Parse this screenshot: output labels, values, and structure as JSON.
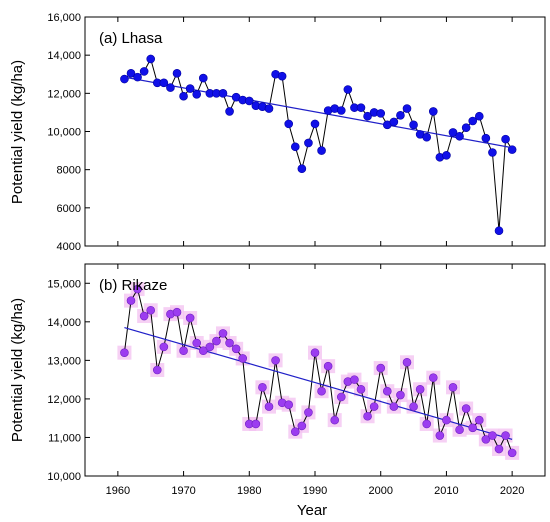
{
  "xlabel": "Year",
  "ylabel": "Potential yield (kg/ha)",
  "x_ticks": [
    "1960",
    "1970",
    "1980",
    "1990",
    "2000",
    "2010",
    "2020"
  ],
  "colors": {
    "lhasa_points": "#1010e8",
    "rikaze_points": "#9c3cf0",
    "rikaze_halo": "#f3c0f0",
    "trend": "#2020c8",
    "series_line": "#000000"
  },
  "chart_data": [
    {
      "type": "line",
      "panel_label": "(a) Lhasa",
      "xlabel": "Year",
      "ylabel": "Potential yield (kg/ha)",
      "xlim": [
        1955,
        2025
      ],
      "ylim": [
        4000,
        16000
      ],
      "y_tick_values": [
        4000,
        6000,
        8000,
        10000,
        12000,
        14000,
        16000
      ],
      "y_tick_labels": [
        "4000",
        "6000",
        "8000",
        "10,000",
        "12,000",
        "14,000",
        "16,000"
      ],
      "x": [
        1961,
        1962,
        1963,
        1964,
        1965,
        1966,
        1967,
        1968,
        1969,
        1970,
        1971,
        1972,
        1973,
        1974,
        1975,
        1976,
        1977,
        1978,
        1979,
        1980,
        1981,
        1982,
        1983,
        1984,
        1985,
        1986,
        1987,
        1988,
        1989,
        1990,
        1991,
        1992,
        1993,
        1994,
        1995,
        1996,
        1997,
        1998,
        1999,
        2000,
        2001,
        2002,
        2003,
        2004,
        2005,
        2006,
        2007,
        2008,
        2009,
        2010,
        2011,
        2012,
        2013,
        2014,
        2015,
        2016,
        2017,
        2018,
        2019,
        2020
      ],
      "values": [
        12750,
        13050,
        12850,
        13150,
        13800,
        12550,
        12550,
        12300,
        13050,
        11850,
        12250,
        11950,
        12800,
        12000,
        12000,
        12000,
        11050,
        11800,
        11650,
        11600,
        11350,
        11300,
        11200,
        13000,
        12900,
        10400,
        9200,
        8050,
        9400,
        10400,
        9000,
        11100,
        11200,
        11100,
        12200,
        11250,
        11250,
        10800,
        11000,
        10950,
        10350,
        10500,
        10850,
        11200,
        10350,
        9850,
        9700,
        11050,
        8650,
        8750,
        9950,
        9750,
        10200,
        10550,
        10800,
        9650,
        8900,
        4800,
        9600,
        9050
      ],
      "trend": {
        "x": [
          1961,
          2020
        ],
        "y": [
          12850,
          9150
        ]
      }
    },
    {
      "type": "line",
      "panel_label": "(b) Rikaze",
      "xlabel": "Year",
      "ylabel": "Potential yield (kg/ha)",
      "xlim": [
        1955,
        2025
      ],
      "ylim": [
        10000,
        15500
      ],
      "y_tick_values": [
        10000,
        11000,
        12000,
        13000,
        14000,
        15000
      ],
      "y_tick_labels": [
        "10,000",
        "11,000",
        "12,000",
        "13,000",
        "14,000",
        "15,000"
      ],
      "x": [
        1961,
        1962,
        1963,
        1964,
        1965,
        1966,
        1967,
        1968,
        1969,
        1970,
        1971,
        1972,
        1973,
        1974,
        1975,
        1976,
        1977,
        1978,
        1979,
        1980,
        1981,
        1982,
        1983,
        1984,
        1985,
        1986,
        1987,
        1988,
        1989,
        1990,
        1991,
        1992,
        1993,
        1994,
        1995,
        1996,
        1997,
        1998,
        1999,
        2000,
        2001,
        2002,
        2003,
        2004,
        2005,
        2006,
        2007,
        2008,
        2009,
        2010,
        2011,
        2012,
        2013,
        2014,
        2015,
        2016,
        2017,
        2018,
        2019,
        2020
      ],
      "values": [
        13200,
        14550,
        14850,
        14150,
        14300,
        12750,
        13350,
        14200,
        14250,
        13250,
        14100,
        13450,
        13250,
        13350,
        13500,
        13700,
        13450,
        13300,
        13050,
        11350,
        11350,
        12300,
        11800,
        13000,
        11900,
        11850,
        11150,
        11300,
        11650,
        13200,
        12200,
        12850,
        11450,
        12050,
        12450,
        12500,
        12250,
        11550,
        11800,
        12800,
        12200,
        11800,
        12100,
        12950,
        11800,
        12250,
        11350,
        12550,
        11050,
        11450,
        12300,
        11200,
        11750,
        11250,
        11450,
        10950,
        11050,
        10700,
        11050,
        10600
      ],
      "trend": {
        "x": [
          1961,
          2020
        ],
        "y": [
          13850,
          10950
        ]
      }
    }
  ]
}
